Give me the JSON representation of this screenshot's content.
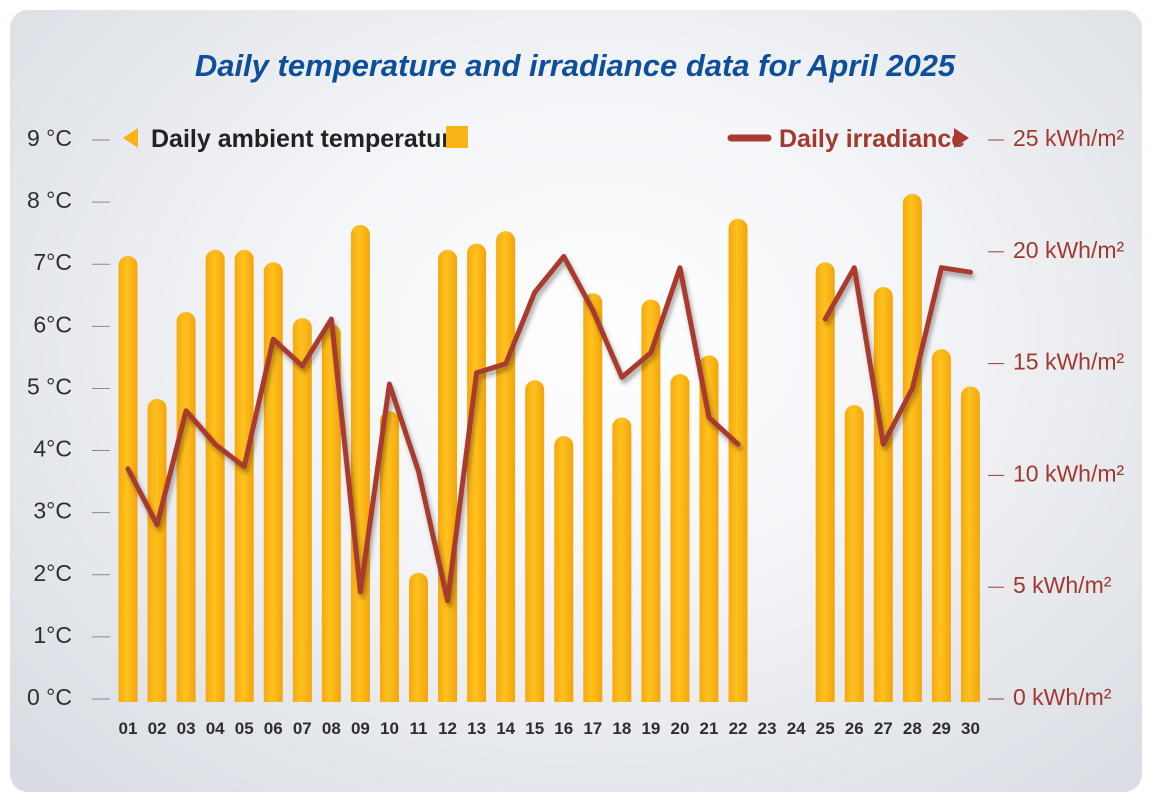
{
  "chart_data": {
    "type": "bar+line",
    "title": "Daily temperature and irradiance data for April 2025",
    "categories": [
      "01",
      "02",
      "03",
      "04",
      "05",
      "06",
      "07",
      "08",
      "09",
      "10",
      "11",
      "12",
      "13",
      "14",
      "15",
      "16",
      "17",
      "18",
      "19",
      "20",
      "21",
      "22",
      "23",
      "24",
      "25",
      "26",
      "27",
      "28",
      "29",
      "30"
    ],
    "series": [
      {
        "name": "Daily ambient temperature",
        "type": "bar",
        "axis": "left",
        "color": "#fbb416",
        "values": [
          7.1,
          4.8,
          6.2,
          7.2,
          7.2,
          7.0,
          6.1,
          6.0,
          7.6,
          4.6,
          2.0,
          7.2,
          7.3,
          7.5,
          5.1,
          4.2,
          6.5,
          4.5,
          6.4,
          5.2,
          5.5,
          7.7,
          null,
          null,
          7.0,
          4.7,
          6.6,
          8.1,
          5.6,
          5.0
        ]
      },
      {
        "name": "Daily irradiance",
        "type": "line",
        "axis": "right",
        "color": "#a93a2f",
        "values": [
          10.2,
          7.7,
          12.8,
          11.3,
          10.3,
          16.0,
          14.8,
          16.9,
          4.7,
          14.0,
          10.1,
          4.3,
          14.5,
          14.9,
          18.1,
          19.7,
          17.3,
          14.3,
          15.4,
          19.2,
          12.5,
          11.3,
          null,
          null,
          16.9,
          19.2,
          11.3,
          13.8,
          19.2,
          19.0
        ]
      }
    ],
    "y_left": {
      "ticks": [
        "0 °C",
        "1°C",
        "2°C",
        "3°C",
        "4°C",
        "5 °C",
        "6°C",
        "7°C",
        "8 °C",
        "9 °C"
      ],
      "ylim": [
        0,
        9
      ],
      "unit": "°C"
    },
    "y_right": {
      "ticks": [
        "0 kWh/m²",
        "5 kWh/m²",
        "10 kWh/m²",
        "15 kWh/m²",
        "20 kWh/m²",
        "25 kWh/m²"
      ],
      "ylim": [
        0,
        25
      ],
      "unit": "kWh/m²"
    },
    "legend": {
      "temperature_label": "Daily ambient temperature",
      "irradiance_label": "Daily irradiance",
      "placement": "top"
    },
    "colors": {
      "title": "#0e4f9c",
      "bar": "#fbb416",
      "bar_highlight": "#ffd45a",
      "line": "#a93a2f",
      "left_axis_text": "#2e2e2e",
      "right_axis_text": "#a0392e"
    }
  }
}
